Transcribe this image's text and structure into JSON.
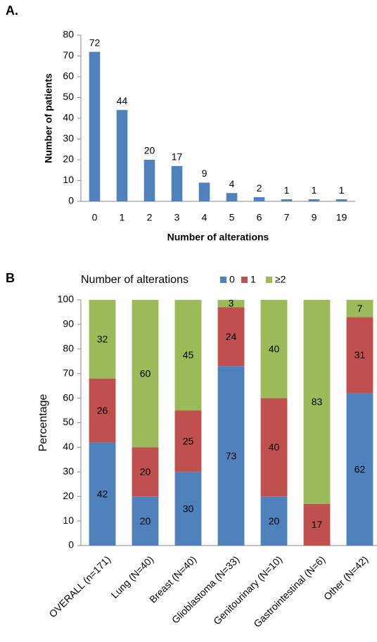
{
  "chart_data": [
    {
      "type": "bar",
      "panel_label": "A.",
      "x_label": "Number of alterations",
      "y_label": "Number of patients",
      "categories": [
        "0",
        "1",
        "2",
        "3",
        "4",
        "5",
        "6",
        "7",
        "9",
        "19"
      ],
      "values": [
        72,
        44,
        20,
        17,
        9,
        4,
        2,
        1,
        1,
        1
      ],
      "color": "#4f81bd",
      "ylim": [
        0,
        80
      ],
      "yticks": [
        0,
        10,
        20,
        30,
        40,
        50,
        60,
        70,
        80
      ]
    },
    {
      "type": "stacked_bar",
      "panel_label": "B",
      "legend_title": "Number of alterations",
      "y_label": "Percentage",
      "categories": [
        "OVERALL (n=171)",
        "Lung (N=40)",
        "Breast (N=40)",
        "Glioblastoma (N=33)",
        "Genitourinary (N=10)",
        "Gastrointestinal (N=6)",
        "Other (N=42)"
      ],
      "series": [
        {
          "name": "0",
          "color": "#4f81bd",
          "values": [
            42,
            20,
            30,
            73,
            20,
            0,
            62
          ]
        },
        {
          "name": "1",
          "color": "#c0504d",
          "values": [
            26,
            20,
            25,
            24,
            40,
            17,
            31
          ]
        },
        {
          "name": "≥2",
          "color": "#9bbb59",
          "values": [
            32,
            60,
            45,
            3,
            40,
            83,
            7
          ]
        }
      ],
      "ylim": [
        0,
        100
      ],
      "yticks": [
        0,
        10,
        20,
        30,
        40,
        50,
        60,
        70,
        80,
        90,
        100
      ]
    }
  ]
}
